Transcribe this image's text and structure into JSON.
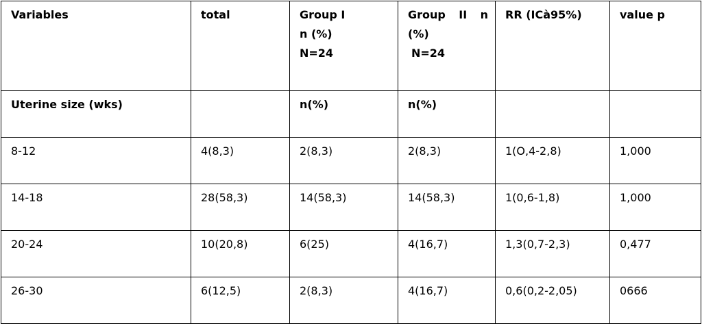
{
  "table": {
    "header": {
      "variables": "Variables",
      "total": "total",
      "group1_line1": "Group I",
      "group1_line2": "n (%)",
      "group1_line3": "N=24",
      "group2_word1": "Group",
      "group2_word2": "II",
      "group2_word3": "n",
      "group2_line2": "(%)",
      "group2_line3": "N=24",
      "rr": "RR (ICà95%)",
      "pvalue": "value p"
    },
    "subheader": {
      "variable": "Uterine size (wks)",
      "group1": "n(%)",
      "group2": "n(%)"
    },
    "rows": [
      {
        "variable": "8-12",
        "total": "4(8,3)",
        "group1": "2(8,3)",
        "group2": "2(8,3)",
        "rr": "1(O,4-2,8)",
        "p": "1,000"
      },
      {
        "variable": "14-18",
        "total": "28(58,3)",
        "group1": "14(58,3)",
        "group2": "14(58,3)",
        "rr": "1(0,6-1,8)",
        "p": "1,000"
      },
      {
        "variable": "20-24",
        "total": "10(20,8)",
        "group1": "6(25)",
        "group2": "4(16,7)",
        "rr": "1,3(0,7-2,3)",
        "p": "0,477"
      },
      {
        "variable": "26-30",
        "total": "6(12,5)",
        "group1": "2(8,3)",
        "group2": "4(16,7)",
        "rr": "0,6(0,2-2,05)",
        "p": "0666"
      }
    ]
  }
}
